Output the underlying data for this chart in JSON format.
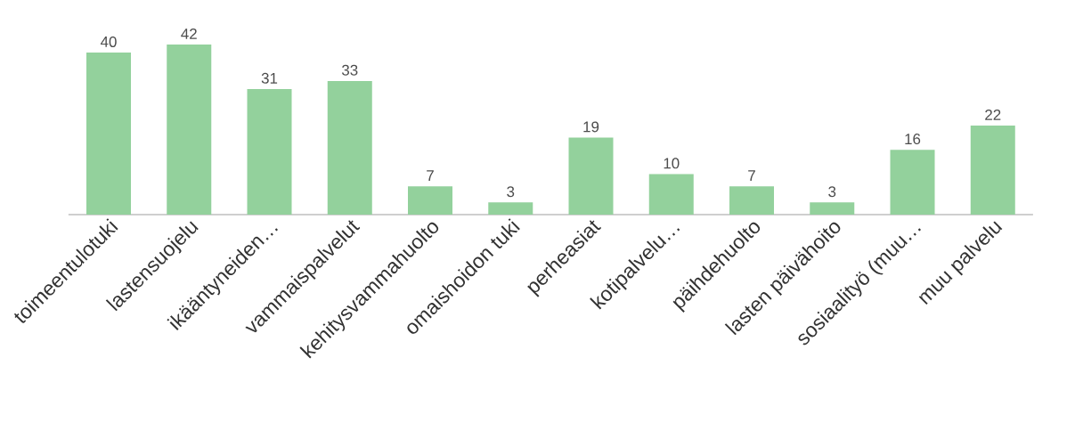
{
  "chart_data": {
    "type": "bar",
    "categories": [
      "toimeentulotuki",
      "lastensuojelu",
      "ikääntyneiden…",
      "vammaispalvelut",
      "kehitysvammahuolto",
      "omaishoidon tuki",
      "perheasiat",
      "kotipalvelu…",
      "päihdehuolto",
      "lasten päivähoito",
      "sosiaalityö (muu…",
      "muu palvelu"
    ],
    "values": [
      40,
      42,
      31,
      33,
      7,
      3,
      19,
      10,
      7,
      3,
      16,
      22
    ],
    "color": "#93d19c",
    "data_labels": true
  }
}
